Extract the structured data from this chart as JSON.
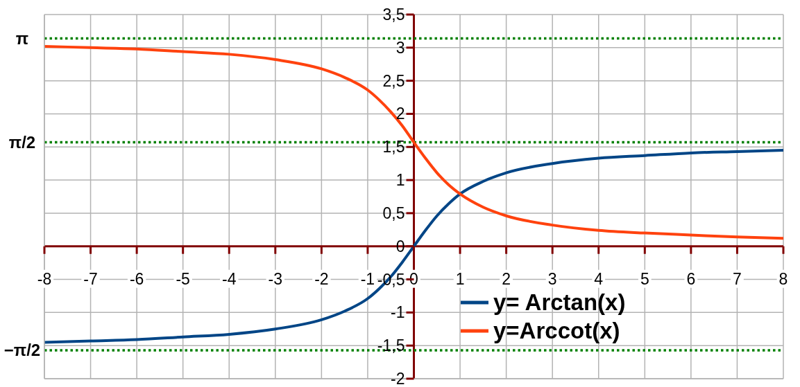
{
  "chart_data": {
    "type": "line",
    "x": [
      -8,
      -7,
      -6,
      -5,
      -4,
      -3,
      -2,
      -1.5,
      -1,
      -0.75,
      -0.5,
      -0.25,
      0,
      0.25,
      0.5,
      0.75,
      1,
      1.5,
      2,
      3,
      4,
      5,
      6,
      7,
      8
    ],
    "series": [
      {
        "name": "y= Arctan(x)",
        "color": "#004586",
        "values": [
          -1.45,
          -1.43,
          -1.41,
          -1.37,
          -1.33,
          -1.25,
          -1.11,
          -0.98,
          -0.79,
          -0.64,
          -0.46,
          -0.24,
          0,
          0.24,
          0.46,
          0.64,
          0.79,
          0.98,
          1.11,
          1.25,
          1.33,
          1.37,
          1.41,
          1.43,
          1.45
        ]
      },
      {
        "name": "y=Arccot(x)",
        "color": "#ff420e",
        "values": [
          3.02,
          3.0,
          2.98,
          2.94,
          2.9,
          2.82,
          2.68,
          2.55,
          2.36,
          2.21,
          2.03,
          1.82,
          1.57,
          1.33,
          1.11,
          0.93,
          0.79,
          0.59,
          0.46,
          0.32,
          0.24,
          0.2,
          0.17,
          0.14,
          0.12
        ]
      }
    ],
    "xlim": [
      -8,
      8
    ],
    "xticks": [
      -8,
      -7,
      -6,
      -5,
      -4,
      -3,
      -2,
      -1,
      0,
      1,
      2,
      3,
      4,
      5,
      6,
      7,
      8
    ],
    "ylim": [
      -2,
      3.5
    ],
    "yticks": [
      -2,
      {
        "value": -1.5,
        "label": "-1,5"
      },
      -1,
      {
        "value": -0.5,
        "label": "-0,5"
      },
      0,
      {
        "value": 0.5,
        "label": "0,5"
      },
      1,
      {
        "value": 1.5,
        "label": "1,5"
      },
      2,
      {
        "value": 2.5,
        "label": "2,5"
      },
      3,
      {
        "value": 3.5,
        "label": "3,5"
      }
    ],
    "grid": true,
    "legend": "bottom right",
    "ref_lines": [
      {
        "axis": "y",
        "value": 3.14,
        "label": "π",
        "color": "#008000",
        "line_style": "dotted"
      },
      {
        "axis": "y",
        "value": 1.57,
        "label": "π/2",
        "color": "#008000",
        "line_style": "dotted"
      },
      {
        "axis": "y",
        "value": -1.57,
        "label": "−π/2",
        "color": "#008000",
        "line_style": "dotted"
      }
    ]
  }
}
